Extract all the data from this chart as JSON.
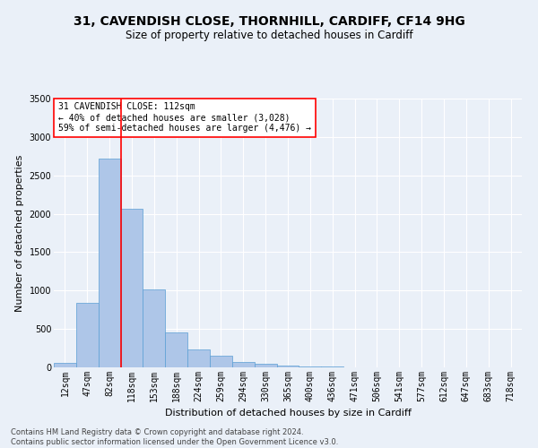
{
  "title_line1": "31, CAVENDISH CLOSE, THORNHILL, CARDIFF, CF14 9HG",
  "title_line2": "Size of property relative to detached houses in Cardiff",
  "xlabel": "Distribution of detached houses by size in Cardiff",
  "ylabel": "Number of detached properties",
  "categories": [
    "12sqm",
    "47sqm",
    "82sqm",
    "118sqm",
    "153sqm",
    "188sqm",
    "224sqm",
    "259sqm",
    "294sqm",
    "330sqm",
    "365sqm",
    "400sqm",
    "436sqm",
    "471sqm",
    "506sqm",
    "541sqm",
    "577sqm",
    "612sqm",
    "647sqm",
    "683sqm",
    "718sqm"
  ],
  "values": [
    55,
    840,
    2720,
    2060,
    1010,
    460,
    235,
    155,
    70,
    45,
    25,
    15,
    8,
    4,
    2,
    1,
    1,
    0,
    0,
    0,
    0
  ],
  "bar_color": "#aec6e8",
  "bar_edge_color": "#5a9fd4",
  "vline_x": 2.5,
  "vline_color": "red",
  "annotation_text": "31 CAVENDISH CLOSE: 112sqm\n← 40% of detached houses are smaller (3,028)\n59% of semi-detached houses are larger (4,476) →",
  "annotation_box_color": "white",
  "annotation_box_edge_color": "red",
  "ylim": [
    0,
    3500
  ],
  "footnote": "Contains HM Land Registry data © Crown copyright and database right 2024.\nContains public sector information licensed under the Open Government Licence v3.0.",
  "background_color": "#eaf0f8",
  "grid_color": "white",
  "title_fontsize": 10,
  "subtitle_fontsize": 8.5,
  "axis_label_fontsize": 8,
  "tick_fontsize": 7,
  "annotation_fontsize": 7,
  "footnote_fontsize": 6
}
